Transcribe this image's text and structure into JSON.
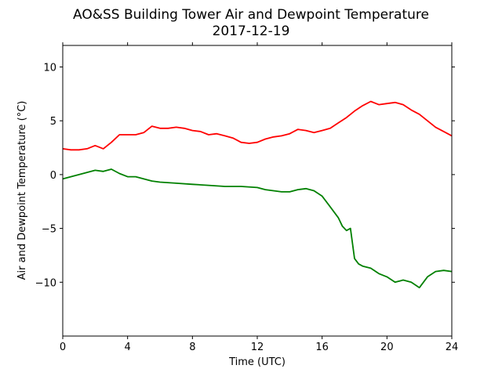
{
  "chart_data": {
    "type": "line",
    "title": "AO&SS Building Tower Air and Dewpoint Temperature",
    "subtitle": "2017-12-19",
    "xlabel": "Time (UTC)",
    "ylabel": "Air and Dewpoint Temperature (°C)",
    "xlim": [
      0,
      24
    ],
    "ylim": [
      -15,
      12
    ],
    "xticks": [
      0,
      4,
      8,
      12,
      16,
      20,
      24
    ],
    "yticks": [
      -10,
      -5,
      0,
      5,
      10
    ],
    "grid": false,
    "legend": "none",
    "series": [
      {
        "color": "#ff0000",
        "x": [
          0,
          0.5,
          1,
          1.5,
          2,
          2.5,
          3,
          3.5,
          4,
          4.5,
          5,
          5.5,
          6,
          6.5,
          7,
          7.5,
          8,
          8.5,
          9,
          9.5,
          10,
          10.5,
          11,
          11.5,
          12,
          12.5,
          13,
          13.5,
          14,
          14.5,
          15,
          15.5,
          16,
          16.5,
          17,
          17.5,
          18,
          18.5,
          19,
          19.5,
          20,
          20.5,
          21,
          21.5,
          22,
          22.5,
          23,
          23.5,
          24
        ],
        "y": [
          2.4,
          2.3,
          2.3,
          2.4,
          2.7,
          2.4,
          3.0,
          3.7,
          3.7,
          3.7,
          3.9,
          4.5,
          4.3,
          4.3,
          4.4,
          4.3,
          4.1,
          4.0,
          3.7,
          3.8,
          3.6,
          3.4,
          3.0,
          2.9,
          3.0,
          3.3,
          3.5,
          3.6,
          3.8,
          4.2,
          4.1,
          3.9,
          4.1,
          4.3,
          4.8,
          5.3,
          5.9,
          6.4,
          6.8,
          6.5,
          6.6,
          6.7,
          6.5,
          6.0,
          5.6,
          5.0,
          4.4,
          4.0,
          3.6
        ]
      },
      {
        "color": "#008000",
        "x": [
          0,
          0.5,
          1,
          1.5,
          2,
          2.5,
          3,
          3.5,
          4,
          4.5,
          5,
          5.5,
          6,
          7,
          8,
          9,
          10,
          11,
          12,
          12.5,
          13,
          13.5,
          14,
          14.5,
          15,
          15.5,
          16,
          16.5,
          17,
          17.25,
          17.5,
          17.75,
          18,
          18.25,
          18.5,
          19,
          19.5,
          20,
          20.5,
          21,
          21.5,
          22,
          22.5,
          23,
          23.5,
          24
        ],
        "y": [
          -0.4,
          -0.2,
          0.0,
          0.2,
          0.4,
          0.3,
          0.5,
          0.1,
          -0.2,
          -0.2,
          -0.4,
          -0.6,
          -0.7,
          -0.8,
          -0.9,
          -1.0,
          -1.1,
          -1.1,
          -1.2,
          -1.4,
          -1.5,
          -1.6,
          -1.6,
          -1.4,
          -1.3,
          -1.5,
          -2.0,
          -3.0,
          -4.0,
          -4.8,
          -5.2,
          -5.0,
          -7.8,
          -8.3,
          -8.5,
          -8.7,
          -9.2,
          -9.5,
          -10.0,
          -9.8,
          -10.0,
          -10.5,
          -9.5,
          -9.0,
          -8.9,
          -9.0
        ]
      }
    ]
  }
}
